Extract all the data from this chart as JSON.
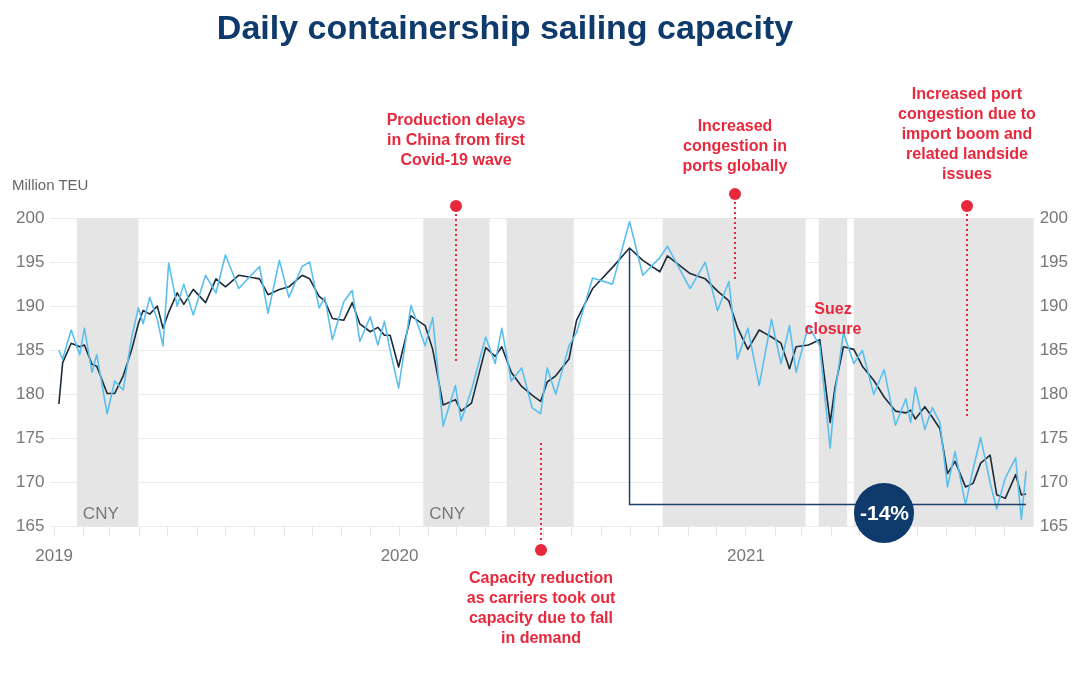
{
  "chart_data": {
    "type": "line",
    "title": "Daily containership sailing capacity",
    "ylabel": "Million TEU",
    "x": [
      "2019-01-06",
      "2019-01-10",
      "2019-01-19",
      "2019-01-28",
      "2019-02-02",
      "2019-02-10",
      "2019-02-15",
      "2019-02-26",
      "2019-03-06",
      "2019-03-15",
      "2019-03-24",
      "2019-03-31",
      "2019-04-05",
      "2019-04-12",
      "2019-04-20",
      "2019-04-26",
      "2019-05-02",
      "2019-05-11",
      "2019-05-18",
      "2019-05-28",
      "2019-06-10",
      "2019-06-21",
      "2019-07-01",
      "2019-07-15",
      "2019-08-06",
      "2019-08-15",
      "2019-08-27",
      "2019-09-06",
      "2019-09-20",
      "2019-09-28",
      "2019-10-08",
      "2019-10-14",
      "2019-10-22",
      "2019-11-03",
      "2019-11-12",
      "2019-11-20",
      "2019-12-01",
      "2019-12-09",
      "2019-12-16",
      "2019-12-22",
      "2019-12-31",
      "2020-01-13",
      "2020-01-28",
      "2020-02-05",
      "2020-02-16",
      "2020-02-29",
      "2020-03-06",
      "2020-03-17",
      "2020-04-01",
      "2020-04-11",
      "2020-04-18",
      "2020-04-28",
      "2020-05-09",
      "2020-05-20",
      "2020-05-29",
      "2020-06-05",
      "2020-06-14",
      "2020-06-28",
      "2020-07-06",
      "2020-07-23",
      "2020-08-13",
      "2020-08-31",
      "2020-09-14",
      "2020-10-02",
      "2020-10-10",
      "2020-11-03",
      "2020-11-19",
      "2020-12-02",
      "2020-12-14",
      "2020-12-23",
      "2021-01-03",
      "2021-01-15",
      "2021-01-28",
      "2021-02-07",
      "2021-02-16",
      "2021-02-23",
      "2021-03-08",
      "2021-03-20",
      "2021-03-31",
      "2021-04-05",
      "2021-04-14",
      "2021-04-25",
      "2021-05-04",
      "2021-05-16",
      "2021-05-27",
      "2021-06-08",
      "2021-06-19",
      "2021-06-24",
      "2021-06-29",
      "2021-07-09",
      "2021-07-17",
      "2021-07-25",
      "2021-08-02",
      "2021-08-10",
      "2021-08-21",
      "2021-08-29",
      "2021-09-06",
      "2021-09-16",
      "2021-09-23",
      "2021-10-02",
      "2021-10-13",
      "2021-10-19",
      "2021-10-24"
    ],
    "series": [
      {
        "color": "#5bbfee",
        "values": [
          185,
          184,
          187.3,
          184.5,
          187.5,
          182.5,
          184.5,
          177.8,
          181.5,
          180.5,
          186.5,
          189.8,
          188,
          191,
          188.5,
          185.5,
          194.9,
          190,
          192.5,
          189,
          193.5,
          191.5,
          195.8,
          192,
          194.5,
          189.2,
          195.2,
          191,
          194.5,
          195,
          189.8,
          191,
          186.2,
          190.5,
          191.8,
          186,
          188.8,
          185.6,
          188.3,
          185,
          180.7,
          190.1,
          185.5,
          188.7,
          176.4,
          181,
          177,
          180.5,
          186.5,
          183.5,
          187.5,
          181.5,
          183,
          178.5,
          177.8,
          183,
          180,
          185.5,
          187,
          193.2,
          192.5,
          199.6,
          193.5,
          195.5,
          196.8,
          192,
          195,
          189.5,
          192.8,
          184,
          187.5,
          181,
          188.5,
          183.5,
          187.8,
          182.5,
          187.8,
          185.5,
          173.9,
          180,
          187,
          183.5,
          185,
          180,
          182.8,
          176.5,
          179.5,
          176.8,
          180.8,
          176,
          178.5,
          176.8,
          169.5,
          173.5,
          167.5,
          171.5,
          175.1,
          170,
          167,
          170.5,
          172.8,
          165.8,
          171.3
        ]
      },
      {
        "color": "#1c2b39",
        "values": [
          178.9,
          183.6,
          185.8,
          185.4,
          185.6,
          183.4,
          183.2,
          180.1,
          180.1,
          182.1,
          185.1,
          188,
          189.5,
          189.1,
          190,
          187.5,
          189.3,
          191.5,
          190.2,
          191.9,
          190.4,
          193.1,
          192.2,
          193.5,
          193.1,
          191.3,
          191.9,
          192.2,
          193.5,
          193.1,
          191.1,
          190.6,
          188.6,
          188.4,
          190.4,
          188,
          187.1,
          187.6,
          186.7,
          186.7,
          183.1,
          188.9,
          187.8,
          185.1,
          178.8,
          179.4,
          178.1,
          179,
          185.3,
          184.3,
          185.4,
          182.5,
          180.9,
          179.9,
          179.2,
          181.4,
          182.1,
          184,
          188.4,
          192,
          194.4,
          196.6,
          195.2,
          193.9,
          195.7,
          193.7,
          193.1,
          191.7,
          190.6,
          187.6,
          185.1,
          187.3,
          186.5,
          185.8,
          182.9,
          185.4,
          185.6,
          186.2,
          176.8,
          180.7,
          185.4,
          185.1,
          183.2,
          181.6,
          179.7,
          178.1,
          177.9,
          178.2,
          177.2,
          178.6,
          177.4,
          176.1,
          171,
          172.4,
          169.5,
          169.9,
          172.2,
          173.1,
          168.6,
          168.2,
          170.9,
          168.6,
          168.7
        ]
      }
    ],
    "xlim": [
      "2018-12-28",
      "2021-11-01"
    ],
    "xticks": [
      {
        "value": "2019-01-01",
        "label": "2019"
      },
      {
        "value": "2019-02-01",
        "label": null
      },
      {
        "value": "2019-03-01",
        "label": null
      },
      {
        "value": "2019-04-01",
        "label": null
      },
      {
        "value": "2019-05-01",
        "label": null
      },
      {
        "value": "2019-06-01",
        "label": null
      },
      {
        "value": "2019-07-01",
        "label": null
      },
      {
        "value": "2019-08-01",
        "label": null
      },
      {
        "value": "2019-09-01",
        "label": null
      },
      {
        "value": "2019-10-01",
        "label": null
      },
      {
        "value": "2019-11-01",
        "label": null
      },
      {
        "value": "2019-12-01",
        "label": null
      },
      {
        "value": "2020-01-01",
        "label": "2020"
      },
      {
        "value": "2020-02-01",
        "label": null
      },
      {
        "value": "2020-03-01",
        "label": null
      },
      {
        "value": "2020-04-01",
        "label": null
      },
      {
        "value": "2020-05-01",
        "label": null
      },
      {
        "value": "2020-06-01",
        "label": null
      },
      {
        "value": "2020-07-01",
        "label": null
      },
      {
        "value": "2020-08-01",
        "label": null
      },
      {
        "value": "2020-09-01",
        "label": null
      },
      {
        "value": "2020-10-01",
        "label": null
      },
      {
        "value": "2020-11-01",
        "label": null
      },
      {
        "value": "2020-12-01",
        "label": null
      },
      {
        "value": "2021-01-01",
        "label": "2021"
      },
      {
        "value": "2021-02-01",
        "label": null
      },
      {
        "value": "2021-03-01",
        "label": null
      },
      {
        "value": "2021-04-01",
        "label": null
      },
      {
        "value": "2021-05-01",
        "label": null
      },
      {
        "value": "2021-06-01",
        "label": null
      },
      {
        "value": "2021-07-01",
        "label": null
      },
      {
        "value": "2021-08-01",
        "label": null
      },
      {
        "value": "2021-09-01",
        "label": null
      },
      {
        "value": "2021-10-01",
        "label": null
      }
    ],
    "ylim": [
      165,
      200
    ],
    "yticks": [
      165,
      170,
      175,
      180,
      185,
      190,
      195,
      200
    ],
    "y2lim": [
      165,
      200
    ],
    "y2ticks": [
      165,
      170,
      175,
      180,
      185,
      190,
      195,
      200
    ],
    "grid": "y",
    "legend": false,
    "marker": "none",
    "line_style": "solid",
    "bands": [
      {
        "axis": "x",
        "from": "2019-01-25",
        "to": "2019-03-31",
        "label": "CNY",
        "color": "#e5e5e5"
      },
      {
        "axis": "x",
        "from": "2020-01-26",
        "to": "2020-04-05",
        "label": "CNY",
        "color": "#e5e5e5"
      },
      {
        "axis": "x",
        "from": "2020-04-23",
        "to": "2020-07-03",
        "color": "#e5e5e5"
      },
      {
        "axis": "x",
        "from": "2020-10-05",
        "to": "2021-03-05",
        "color": "#e5e5e5"
      },
      {
        "axis": "x",
        "from": "2021-03-19",
        "to": "2021-04-18",
        "label": "Suez closure",
        "color": "#e5e5e5"
      },
      {
        "axis": "x",
        "from": "2021-04-25",
        "to": "2021-11-01",
        "color": "#e5e5e5"
      }
    ],
    "ref_lines": [
      {
        "axis": "y",
        "value": 167.5,
        "color": "#1f3f6e"
      }
    ],
    "annotations": [
      "Production delays in China from first Covid-19 wave",
      "Capacity reduction as carriers took out capacity due to fall in demand",
      "Increased congestion in ports globally",
      "Increased port congestion due to import boom and related landside issues",
      "-14%"
    ]
  }
}
